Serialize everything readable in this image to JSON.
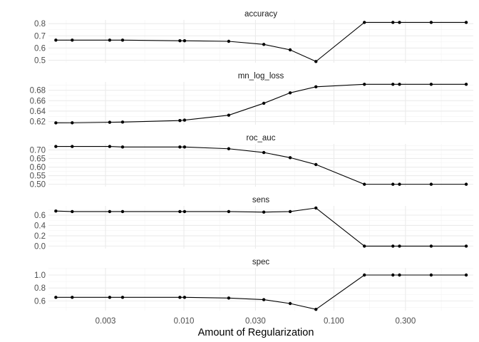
{
  "chart_data": {
    "type": "line",
    "xlabel": "Amount of Regularization",
    "x_scale": "log10",
    "x_ticks": [
      0.003,
      0.01,
      0.03,
      0.1,
      0.3
    ],
    "x_tick_labels": [
      "0.003",
      "0.010",
      "0.030",
      "0.100",
      "0.300"
    ],
    "xlim": [
      0.00125,
      0.85
    ],
    "grid": true,
    "x": [
      0.0014,
      0.0018,
      0.0032,
      0.0039,
      0.0094,
      0.0101,
      0.0199,
      0.0341,
      0.0511,
      0.0759,
      0.1597,
      0.2475,
      0.2738,
      0.4452,
      0.7624
    ],
    "panels": [
      {
        "strip": "accuracy",
        "ylim": [
          0.48,
          0.83
        ],
        "y_ticks": [
          0.5,
          0.6,
          0.7,
          0.8
        ],
        "y_tick_labels": [
          "0.5",
          "0.6",
          "0.7",
          "0.8"
        ],
        "values": [
          0.665,
          0.665,
          0.665,
          0.665,
          0.66,
          0.66,
          0.655,
          0.63,
          0.585,
          0.49,
          0.81,
          0.81,
          0.81,
          0.81,
          0.81
        ]
      },
      {
        "strip": "mn_log_loss",
        "ylim": [
          0.614,
          0.696
        ],
        "y_ticks": [
          0.62,
          0.64,
          0.66,
          0.68
        ],
        "y_tick_labels": [
          "0.62",
          "0.64",
          "0.66",
          "0.68"
        ],
        "values": [
          0.6175,
          0.6176,
          0.6186,
          0.619,
          0.622,
          0.6228,
          0.6322,
          0.6551,
          0.6751,
          0.6867,
          0.6915,
          0.6915,
          0.6915,
          0.6915,
          0.6915
        ]
      },
      {
        "strip": "roc_auc",
        "ylim": [
          0.486,
          0.735
        ],
        "y_ticks": [
          0.5,
          0.55,
          0.6,
          0.65,
          0.7
        ],
        "y_tick_labels": [
          "0.50",
          "0.55",
          "0.60",
          "0.65",
          "0.70"
        ],
        "values": [
          0.72,
          0.72,
          0.72,
          0.717,
          0.717,
          0.717,
          0.707,
          0.685,
          0.655,
          0.615,
          0.5,
          0.5,
          0.5,
          0.5,
          0.5
        ]
      },
      {
        "strip": "sens",
        "ylim": [
          -0.05,
          0.78
        ],
        "y_ticks": [
          0.0,
          0.2,
          0.4,
          0.6
        ],
        "y_tick_labels": [
          "0.0",
          "0.2",
          "0.4",
          "0.6"
        ],
        "values": [
          0.68,
          0.67,
          0.67,
          0.67,
          0.67,
          0.67,
          0.67,
          0.66,
          0.67,
          0.74,
          0.0,
          0.0,
          0.0,
          0.0,
          0.0
        ]
      },
      {
        "strip": "spec",
        "ylim": [
          0.45,
          1.11
        ],
        "y_ticks": [
          0.6,
          0.8,
          1.0
        ],
        "y_tick_labels": [
          "0.6",
          "0.8",
          "1.0"
        ],
        "values": [
          0.655,
          0.655,
          0.655,
          0.655,
          0.655,
          0.655,
          0.645,
          0.62,
          0.56,
          0.47,
          1.0,
          1.0,
          1.0,
          1.0,
          1.0
        ]
      }
    ]
  }
}
